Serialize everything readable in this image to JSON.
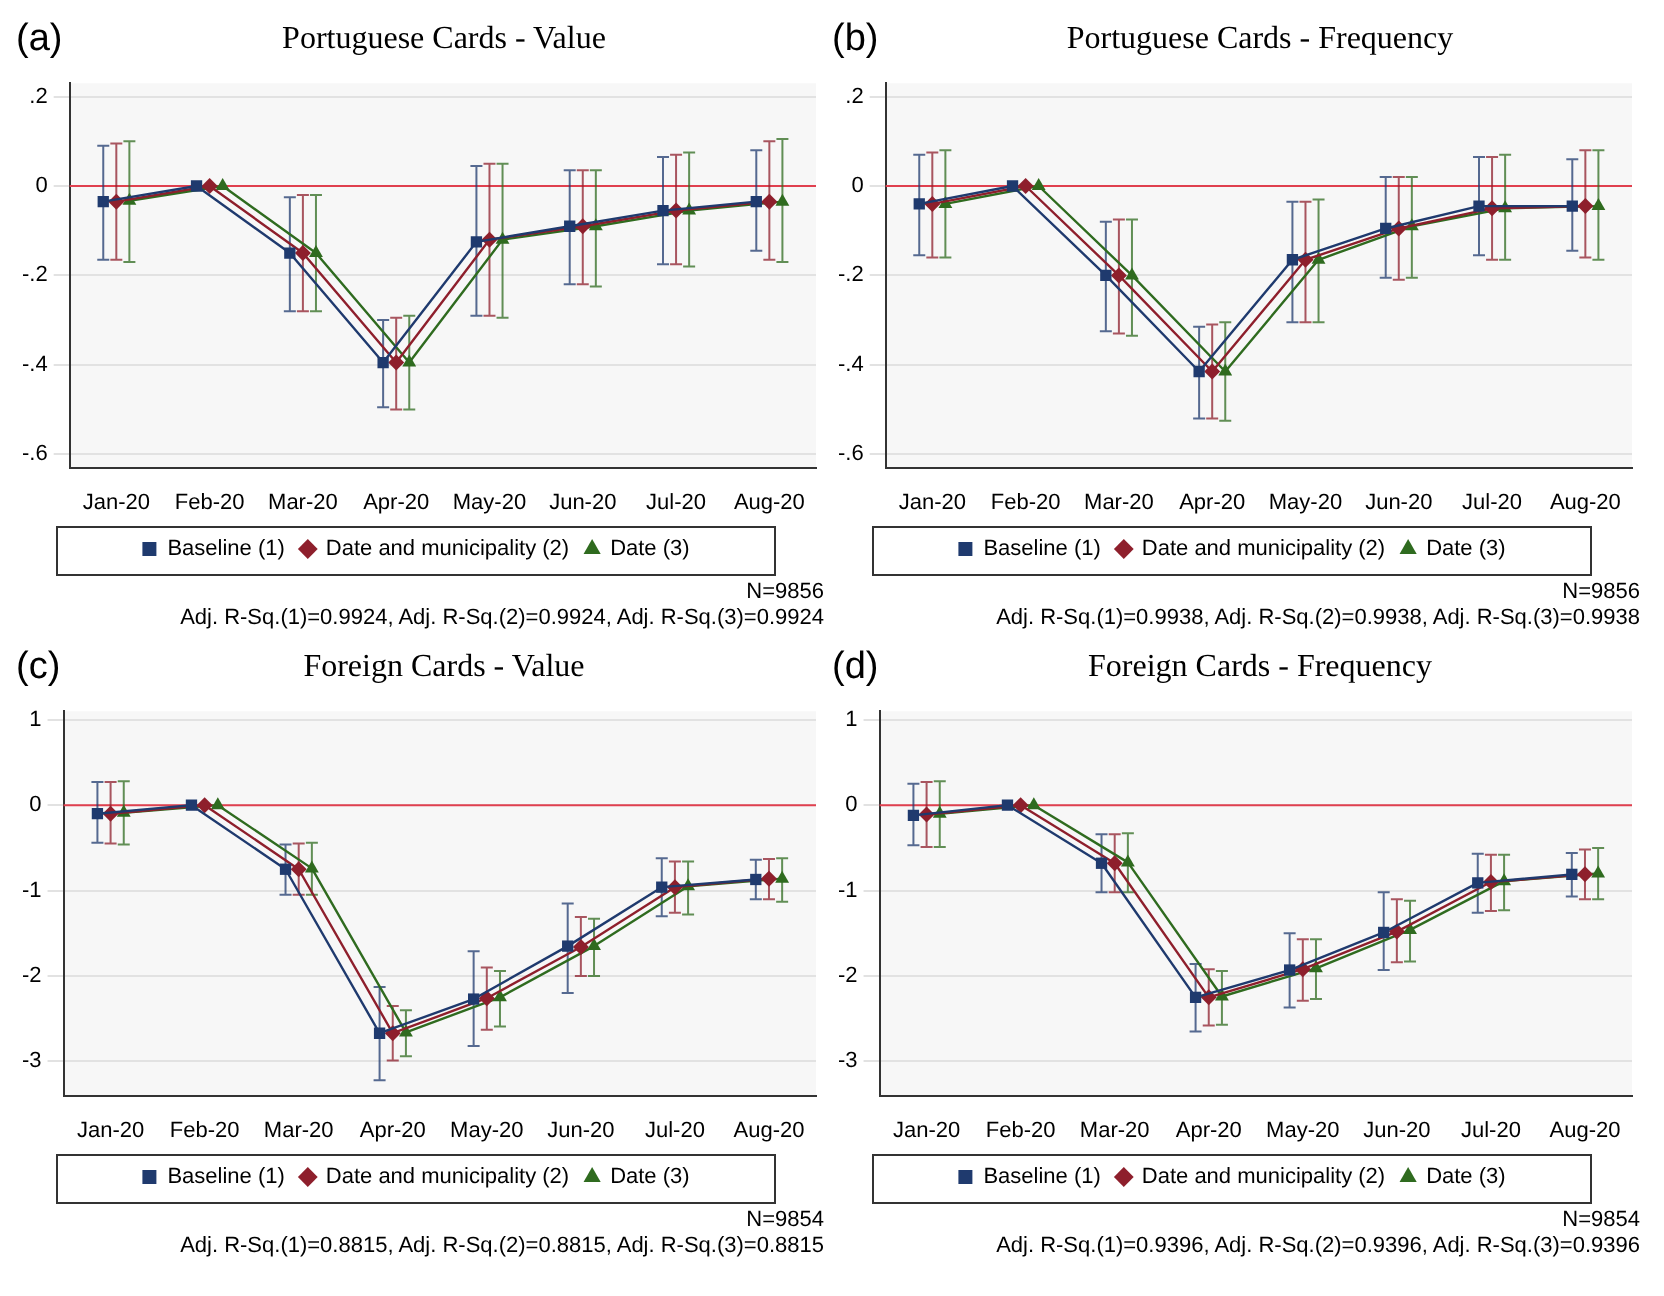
{
  "chart_data": [
    {
      "type": "line",
      "title": "Portuguese Cards - Value",
      "categories": [
        "Jan-20",
        "Feb-20",
        "Mar-20",
        "Apr-20",
        "May-20",
        "Jun-20",
        "Jul-20",
        "Aug-20"
      ],
      "series": [
        {
          "name": "Baseline (1)",
          "color": "#1f3a6e",
          "marker": "square",
          "values": [
            -0.035,
            0,
            -0.15,
            -0.395,
            -0.125,
            -0.09,
            -0.055,
            -0.035
          ],
          "errors": [
            [
              -0.165,
              0.09
            ],
            null,
            [
              -0.28,
              -0.025
            ],
            [
              -0.495,
              -0.3
            ],
            [
              -0.29,
              0.045
            ],
            [
              -0.22,
              0.035
            ],
            [
              -0.175,
              0.065
            ],
            [
              -0.145,
              0.08
            ]
          ]
        },
        {
          "name": "Date and municipality (2)",
          "color": "#8e1f2c",
          "marker": "diamond",
          "values": [
            -0.035,
            0,
            -0.15,
            -0.395,
            -0.12,
            -0.09,
            -0.055,
            -0.035
          ],
          "errors": [
            [
              -0.165,
              0.095
            ],
            null,
            [
              -0.28,
              -0.02
            ],
            [
              -0.5,
              -0.295
            ],
            [
              -0.29,
              0.05
            ],
            [
              -0.22,
              0.035
            ],
            [
              -0.175,
              0.07
            ],
            [
              -0.165,
              0.1
            ]
          ]
        },
        {
          "name": "Date (3)",
          "color": "#2f6b1f",
          "marker": "triangle",
          "values": [
            -0.033,
            0,
            -0.15,
            -0.395,
            -0.12,
            -0.09,
            -0.055,
            -0.035
          ],
          "errors": [
            [
              -0.17,
              0.1
            ],
            null,
            [
              -0.28,
              -0.02
            ],
            [
              -0.5,
              -0.29
            ],
            [
              -0.295,
              0.05
            ],
            [
              -0.225,
              0.035
            ],
            [
              -0.18,
              0.075
            ],
            [
              -0.17,
              0.105
            ]
          ]
        }
      ],
      "ylim": [
        -0.63,
        0.23
      ],
      "yticks": [
        {
          "value": 0.2,
          "label": ".2"
        },
        0,
        {
          "value": -0.2,
          "label": "-.2"
        },
        {
          "value": -0.4,
          "label": "-.4"
        },
        {
          "value": -0.6,
          "label": "-.6"
        }
      ],
      "ref_lines": [
        {
          "axis": "y",
          "value": 0,
          "color": "#e0404f"
        }
      ],
      "grid": "y",
      "legend": "bottom",
      "annotations": [
        "(a)",
        "N=9856",
        "Adj. R-Sq.(1)=0.9924,  Adj. R-Sq.(2)=0.9924, Adj. R-Sq.(3)=0.9924"
      ]
    },
    {
      "type": "line",
      "title": "Portuguese Cards - Frequency",
      "categories": [
        "Jan-20",
        "Feb-20",
        "Mar-20",
        "Apr-20",
        "May-20",
        "Jun-20",
        "Jul-20",
        "Aug-20"
      ],
      "series": [
        {
          "name": "Baseline (1)",
          "color": "#1f3a6e",
          "marker": "square",
          "values": [
            -0.04,
            0,
            -0.2,
            -0.415,
            -0.165,
            -0.095,
            -0.045,
            -0.045
          ],
          "errors": [
            [
              -0.155,
              0.07
            ],
            null,
            [
              -0.325,
              -0.08
            ],
            [
              -0.52,
              -0.315
            ],
            [
              -0.305,
              -0.035
            ],
            [
              -0.205,
              0.02
            ],
            [
              -0.155,
              0.065
            ],
            [
              -0.145,
              0.06
            ]
          ]
        },
        {
          "name": "Date and municipality (2)",
          "color": "#8e1f2c",
          "marker": "diamond",
          "values": [
            -0.04,
            0,
            -0.2,
            -0.415,
            -0.165,
            -0.095,
            -0.05,
            -0.045
          ],
          "errors": [
            [
              -0.16,
              0.075
            ],
            null,
            [
              -0.33,
              -0.075
            ],
            [
              -0.52,
              -0.31
            ],
            [
              -0.305,
              -0.035
            ],
            [
              -0.21,
              0.02
            ],
            [
              -0.165,
              0.065
            ],
            [
              -0.16,
              0.08
            ]
          ]
        },
        {
          "name": "Date (3)",
          "color": "#2f6b1f",
          "marker": "triangle",
          "values": [
            -0.04,
            0,
            -0.2,
            -0.415,
            -0.165,
            -0.09,
            -0.05,
            -0.045
          ],
          "errors": [
            [
              -0.16,
              0.08
            ],
            null,
            [
              -0.335,
              -0.075
            ],
            [
              -0.525,
              -0.305
            ],
            [
              -0.305,
              -0.03
            ],
            [
              -0.205,
              0.02
            ],
            [
              -0.165,
              0.07
            ],
            [
              -0.165,
              0.08
            ]
          ]
        }
      ],
      "ylim": [
        -0.63,
        0.23
      ],
      "yticks": [
        {
          "value": 0.2,
          "label": ".2"
        },
        0,
        {
          "value": -0.2,
          "label": "-.2"
        },
        {
          "value": -0.4,
          "label": "-.4"
        },
        {
          "value": -0.6,
          "label": "-.6"
        }
      ],
      "ref_lines": [
        {
          "axis": "y",
          "value": 0,
          "color": "#e0404f"
        }
      ],
      "grid": "y",
      "legend": "bottom",
      "annotations": [
        "(b)",
        "N=9856",
        "Adj. R-Sq.(1)=0.9938,  Adj. R-Sq.(2)=0.9938, Adj. R-Sq.(3)=0.9938"
      ]
    },
    {
      "type": "line",
      "title": "Foreign Cards - Value",
      "categories": [
        "Jan-20",
        "Feb-20",
        "Mar-20",
        "Apr-20",
        "May-20",
        "Jun-20",
        "Jul-20",
        "Aug-20"
      ],
      "series": [
        {
          "name": "Baseline (1)",
          "color": "#1f3a6e",
          "marker": "square",
          "values": [
            -0.1,
            0,
            -0.75,
            -2.67,
            -2.27,
            -1.65,
            -0.96,
            -0.87
          ],
          "errors": [
            [
              -0.44,
              0.27
            ],
            null,
            [
              -1.05,
              -0.46
            ],
            [
              -3.22,
              -2.13
            ],
            [
              -2.82,
              -1.71
            ],
            [
              -2.2,
              -1.15
            ],
            [
              -1.3,
              -0.62
            ],
            [
              -1.1,
              -0.64
            ]
          ]
        },
        {
          "name": "Date and municipality (2)",
          "color": "#8e1f2c",
          "marker": "diamond",
          "values": [
            -0.1,
            0,
            -0.75,
            -2.67,
            -2.26,
            -1.66,
            -0.96,
            -0.86
          ],
          "errors": [
            [
              -0.45,
              0.27
            ],
            null,
            [
              -1.05,
              -0.45
            ],
            [
              -2.99,
              -2.35
            ],
            [
              -2.63,
              -1.9
            ],
            [
              -2.0,
              -1.31
            ],
            [
              -1.26,
              -0.66
            ],
            [
              -1.1,
              -0.63
            ]
          ]
        },
        {
          "name": "Date (3)",
          "color": "#2f6b1f",
          "marker": "triangle",
          "values": [
            -0.09,
            0,
            -0.74,
            -2.66,
            -2.25,
            -1.65,
            -0.95,
            -0.86
          ],
          "errors": [
            [
              -0.46,
              0.28
            ],
            null,
            [
              -1.05,
              -0.44
            ],
            [
              -2.94,
              -2.4
            ],
            [
              -2.59,
              -1.94
            ],
            [
              -2.0,
              -1.33
            ],
            [
              -1.28,
              -0.66
            ],
            [
              -1.13,
              -0.62
            ]
          ]
        }
      ],
      "ylim": [
        -3.4,
        1.1
      ],
      "yticks": [
        1,
        0,
        -1,
        -2,
        -3
      ],
      "ref_lines": [
        {
          "axis": "y",
          "value": 0,
          "color": "#e0404f"
        }
      ],
      "grid": "y",
      "legend": "bottom",
      "annotations": [
        "(c)",
        "N=9854",
        "Adj. R-Sq.(1)=0.8815,  Adj. R-Sq.(2)=0.8815, Adj. R-Sq.(3)=0.8815"
      ]
    },
    {
      "type": "line",
      "title": "Foreign Cards - Frequency",
      "categories": [
        "Jan-20",
        "Feb-20",
        "Mar-20",
        "Apr-20",
        "May-20",
        "Jun-20",
        "Jul-20",
        "Aug-20"
      ],
      "series": [
        {
          "name": "Baseline (1)",
          "color": "#1f3a6e",
          "marker": "square",
          "values": [
            -0.12,
            0,
            -0.68,
            -2.25,
            -1.93,
            -1.49,
            -0.91,
            -0.81
          ],
          "errors": [
            [
              -0.47,
              0.25
            ],
            null,
            [
              -1.02,
              -0.34
            ],
            [
              -2.65,
              -1.86
            ],
            [
              -2.37,
              -1.5
            ],
            [
              -1.93,
              -1.02
            ],
            [
              -1.26,
              -0.57
            ],
            [
              -1.07,
              -0.56
            ]
          ]
        },
        {
          "name": "Date and municipality (2)",
          "color": "#8e1f2c",
          "marker": "diamond",
          "values": [
            -0.11,
            0,
            -0.68,
            -2.25,
            -1.92,
            -1.48,
            -0.9,
            -0.81
          ],
          "errors": [
            [
              -0.49,
              0.27
            ],
            null,
            [
              -1.02,
              -0.34
            ],
            [
              -2.58,
              -1.92
            ],
            [
              -2.29,
              -1.57
            ],
            [
              -1.84,
              -1.1
            ],
            [
              -1.24,
              -0.58
            ],
            [
              -1.1,
              -0.52
            ]
          ]
        },
        {
          "name": "Date (3)",
          "color": "#2f6b1f",
          "marker": "triangle",
          "values": [
            -0.1,
            0,
            -0.67,
            -2.24,
            -1.91,
            -1.46,
            -0.89,
            -0.8
          ],
          "errors": [
            [
              -0.49,
              0.28
            ],
            null,
            [
              -1.02,
              -0.33
            ],
            [
              -2.57,
              -1.94
            ],
            [
              -2.27,
              -1.57
            ],
            [
              -1.83,
              -1.12
            ],
            [
              -1.23,
              -0.58
            ],
            [
              -1.1,
              -0.5
            ]
          ]
        }
      ],
      "ylim": [
        -3.4,
        1.1
      ],
      "yticks": [
        1,
        0,
        -1,
        -2,
        -3
      ],
      "ref_lines": [
        {
          "axis": "y",
          "value": 0,
          "color": "#e0404f"
        }
      ],
      "grid": "y",
      "legend": "bottom",
      "annotations": [
        "(d)",
        "N=9854",
        "Adj. R-Sq.(1)=0.9396,  Adj. R-Sq.(2)=0.9396, Adj. R-Sq.(3)=0.9396"
      ]
    }
  ]
}
